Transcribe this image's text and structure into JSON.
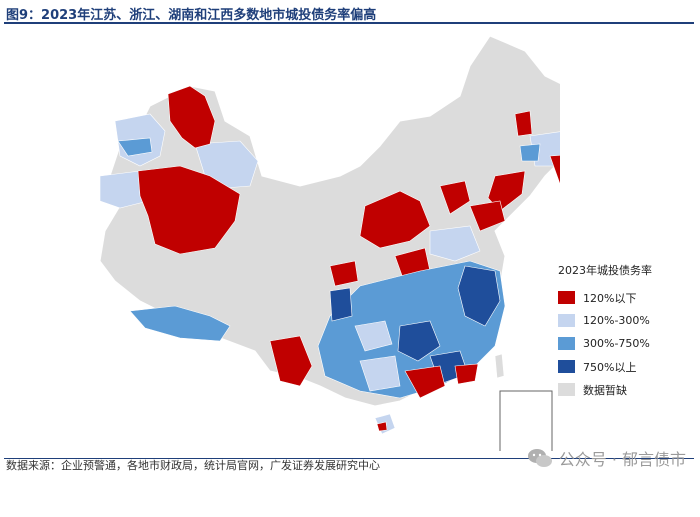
{
  "title": "图9：2023年江苏、浙江、湖南和江西多数地市城投债务率偏高",
  "legend": {
    "title": "2023年城投债务率",
    "items": [
      {
        "label": "120%以下",
        "color": "#c00000"
      },
      {
        "label": "120%-300%",
        "color": "#c5d5ef"
      },
      {
        "label": "300%-750%",
        "color": "#5b9bd5"
      },
      {
        "label": "750%以上",
        "color": "#1f4e9b"
      },
      {
        "label": "数据暂缺",
        "color": "#dcdcdc"
      }
    ]
  },
  "source": "数据来源：企业预警通，各地市财政局，统计局官网，广发证券发展研究中心",
  "watermark": "公众号 · 郁言债市",
  "icons": {
    "watermark": "wechat-icon"
  }
}
